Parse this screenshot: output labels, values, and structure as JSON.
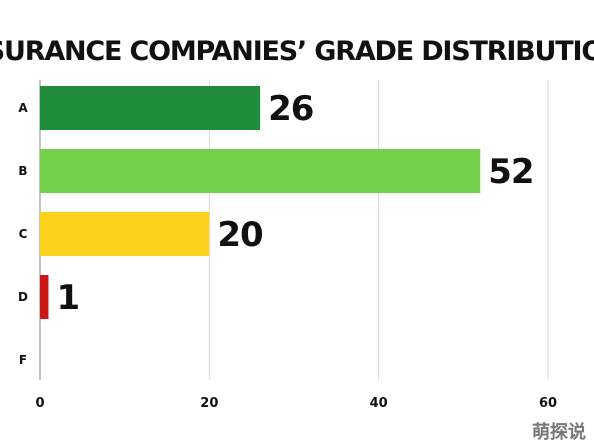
{
  "chart_data": {
    "type": "bar",
    "orientation": "horizontal",
    "title": "INSURANCE COMPANIES’ GRADE DISTRIBUTION",
    "categories": [
      "A",
      "B",
      "C",
      "D",
      "F"
    ],
    "values": [
      26,
      52,
      20,
      1,
      0
    ],
    "value_labels": [
      "26",
      "52",
      "20",
      "1",
      ""
    ],
    "colors": [
      "#1e8c3a",
      "#74cf4a",
      "#fcd21c",
      "#cc1616",
      "#cccccc"
    ],
    "xlim": [
      0,
      60
    ],
    "xticks": [
      0,
      20,
      40,
      60
    ],
    "xtick_labels": [
      "0",
      "20",
      "40",
      "60"
    ],
    "xlabel": "",
    "ylabel": "",
    "grid": true,
    "legend": "none"
  },
  "watermark": "萌探说"
}
